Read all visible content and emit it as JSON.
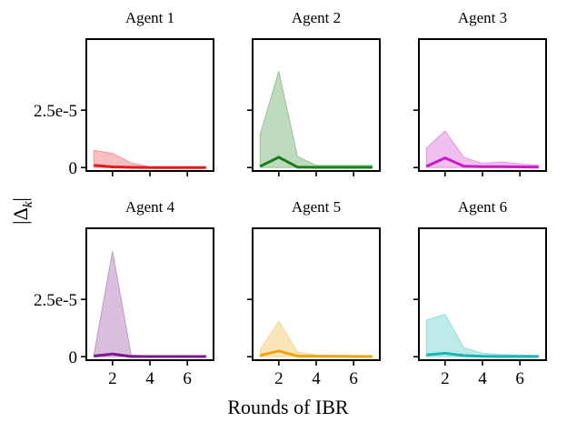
{
  "figure": {
    "xlabel": "Rounds of IBR",
    "ylabel": "|Δk|"
  },
  "chart_data": [
    {
      "type": "line",
      "title": "Agent 1",
      "color": "#e31a1c",
      "x": [
        1,
        2,
        3,
        4,
        5,
        6,
        7
      ],
      "y": [
        1e-06,
        3e-07,
        1e-07,
        0.0,
        0.0,
        0.0,
        0.0
      ],
      "band_upper": [
        7.5e-06,
        6.2e-06,
        2e-06,
        3e-07,
        2e-07,
        1e-07,
        1e-07
      ],
      "band_lower": [
        0,
        0,
        0,
        0,
        0,
        0,
        0
      ],
      "xticks": [
        2,
        4,
        6
      ],
      "yticks": [
        0,
        2.5e-05
      ],
      "ytick_labels": [
        "0",
        "2.5e-5"
      ],
      "xlim": [
        0.6,
        7.4
      ],
      "ylim": [
        -1.5e-06,
        5.6e-05
      ]
    },
    {
      "type": "line",
      "title": "Agent 2",
      "color": "#1a7f1a",
      "x": [
        1,
        2,
        3,
        4,
        5,
        6,
        7
      ],
      "y": [
        5e-07,
        4.5e-06,
        2e-07,
        1e-07,
        1e-07,
        1e-07,
        1e-07
      ],
      "band_upper": [
        1.45e-05,
        4.2e-05,
        4.8e-06,
        1e-06,
        1e-06,
        1e-06,
        1e-06
      ],
      "band_lower": [
        0,
        0,
        0,
        0,
        0,
        0,
        0
      ],
      "xticks": [
        2,
        4,
        6
      ],
      "yticks": [
        0,
        2.5e-05
      ],
      "ytick_labels": [
        "0",
        "2.5e-5"
      ],
      "xlim": [
        0.6,
        7.4
      ],
      "ylim": [
        -1.5e-06,
        5.6e-05
      ]
    },
    {
      "type": "line",
      "title": "Agent 3",
      "color": "#c41ec4",
      "x": [
        1,
        2,
        3,
        4,
        5,
        6,
        7
      ],
      "y": [
        5e-07,
        4.2e-06,
        6e-07,
        4e-07,
        4e-07,
        3e-07,
        2e-07
      ],
      "band_upper": [
        8.5e-06,
        1.6e-05,
        4.5e-06,
        1.8e-06,
        2.4e-06,
        1.6e-06,
        1e-06
      ],
      "band_lower": [
        0,
        0,
        0,
        0,
        0,
        0,
        0
      ],
      "xticks": [
        2,
        4,
        6
      ],
      "yticks": [
        0,
        2.5e-05
      ],
      "ytick_labels": [
        "0",
        "2.5e-5"
      ],
      "xlim": [
        0.6,
        7.4
      ],
      "ylim": [
        -1.5e-06,
        5.6e-05
      ]
    },
    {
      "type": "line",
      "title": "Agent 4",
      "color": "#7a1a8c",
      "x": [
        1,
        2,
        3,
        4,
        5,
        6,
        7
      ],
      "y": [
        3e-07,
        1.2e-06,
        1e-07,
        1e-07,
        1e-07,
        1e-07,
        1e-07
      ],
      "band_upper": [
        8e-07,
        4.6e-05,
        8e-07,
        4e-07,
        4e-07,
        4e-07,
        4e-07
      ],
      "band_lower": [
        0,
        0,
        0,
        0,
        0,
        0,
        0
      ],
      "xticks": [
        2,
        4,
        6
      ],
      "yticks": [
        0,
        2.5e-05
      ],
      "ytick_labels": [
        "0",
        "2.5e-5"
      ],
      "xlim": [
        0.6,
        7.4
      ],
      "ylim": [
        -1.5e-06,
        5.6e-05
      ]
    },
    {
      "type": "line",
      "title": "Agent 5",
      "color": "#f0a30a",
      "x": [
        1,
        2,
        3,
        4,
        5,
        6,
        7
      ],
      "y": [
        5e-07,
        2.5e-06,
        3e-07,
        2e-07,
        2e-07,
        1e-07,
        1e-07
      ],
      "band_upper": [
        3e-06,
        1.55e-05,
        2e-06,
        8e-07,
        7e-07,
        6e-07,
        5e-07
      ],
      "band_lower": [
        0,
        0,
        0,
        0,
        0,
        0,
        0
      ],
      "xticks": [
        2,
        4,
        6
      ],
      "yticks": [
        0,
        2.5e-05
      ],
      "ytick_labels": [
        "0",
        "2.5e-5"
      ],
      "xlim": [
        0.6,
        7.4
      ],
      "ylim": [
        -1.5e-06,
        5.6e-05
      ]
    },
    {
      "type": "line",
      "title": "Agent 6",
      "color": "#17b4b4",
      "x": [
        1,
        2,
        3,
        4,
        5,
        6,
        7
      ],
      "y": [
        8e-07,
        1.5e-06,
        5e-07,
        2e-07,
        1e-07,
        1e-07,
        1e-07
      ],
      "band_upper": [
        1.6e-05,
        1.85e-05,
        4e-06,
        1.5e-06,
        1e-06,
        8e-07,
        6e-07
      ],
      "band_lower": [
        0,
        0,
        0,
        0,
        0,
        0,
        0
      ],
      "xticks": [
        2,
        4,
        6
      ],
      "yticks": [
        0,
        2.5e-05
      ],
      "ytick_labels": [
        "0",
        "2.5e-5"
      ],
      "xlim": [
        0.6,
        7.4
      ],
      "ylim": [
        -1.5e-06,
        5.6e-05
      ]
    }
  ]
}
